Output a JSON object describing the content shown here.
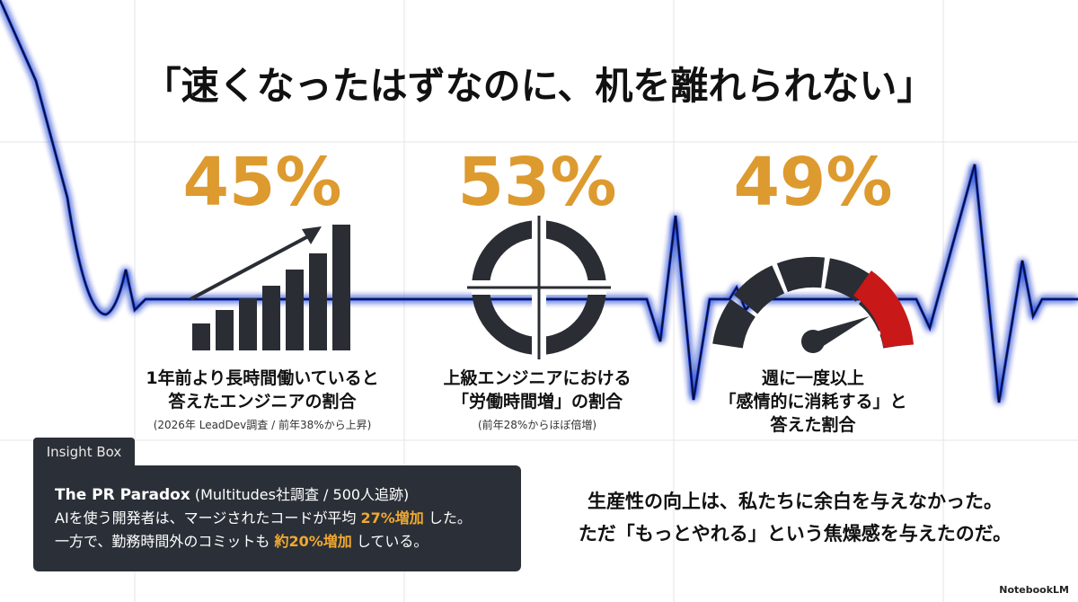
{
  "title": "「速くなったはずなのに、机を離れられない」",
  "stats": [
    {
      "value": "45%",
      "label": [
        "1年前より長時間働いていると",
        "答えたエンジニアの割合"
      ],
      "note": "(2026年 LeadDev調査 / 前年38%から上昇)"
    },
    {
      "value": "53%",
      "label": [
        "上級エンジニアにおける",
        "「労働時間増」の割合"
      ],
      "note": "(前年28%からほぼ倍増)"
    },
    {
      "value": "49%",
      "label": [
        "週に一度以上",
        "「感情的に消耗する」と",
        "答えた割合"
      ]
    }
  ],
  "insight_box": {
    "tab": "Insight Box",
    "heading": "The PR Paradox",
    "heading_note": " (Multitudes社調査 / 500人追跡)",
    "lines": [
      [
        "AIを使う開発者は、マージされたコードが平均 ",
        "27%増加",
        " した。"
      ],
      [
        "一方で、勤務時間外のコミットも ",
        "約20%増加",
        " している。"
      ]
    ]
  },
  "conclusion": [
    "生産性の向上は、私たちに余白を与えなかった。",
    "ただ「もっとやれる」という焦燥感を与えたのだ。"
  ],
  "brand": "NotebookLM"
}
